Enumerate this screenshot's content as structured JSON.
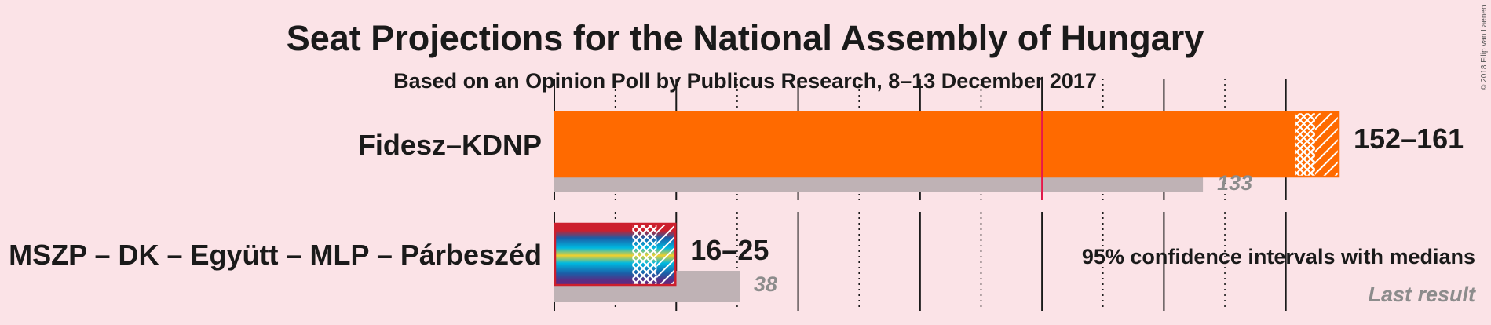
{
  "chart_data": {
    "type": "bar",
    "title": "Seat Projections for the National Assembly of Hungary",
    "subtitle": "Based on an Opinion Poll by Publicus Research, 8–13 December 2017",
    "copyright": "© 2018 Filip van Laenen",
    "majority": 100,
    "xlim": [
      0,
      161
    ],
    "parties": [
      {
        "name": "Fidesz–KDNP",
        "ci_low": 152,
        "ci_high": 161,
        "median": 156,
        "last_result": 133,
        "range_label": "152–161",
        "last_label": "133",
        "colors": [
          "#ff6a00"
        ]
      },
      {
        "name": "MSZP – DK – Együtt – MLP – Párbeszéd",
        "ci_low": 16,
        "ci_high": 25,
        "median": 21,
        "last_result": 38,
        "range_label": "16–25",
        "last_label": "38",
        "colors": [
          "#cc1f2d",
          "#1a5fa8",
          "#f2d02c",
          "#00b9e0",
          "#5b2c83"
        ]
      }
    ],
    "legend": {
      "ci_text": "95% confidence intervals with medians",
      "last_text": "Last result"
    }
  }
}
